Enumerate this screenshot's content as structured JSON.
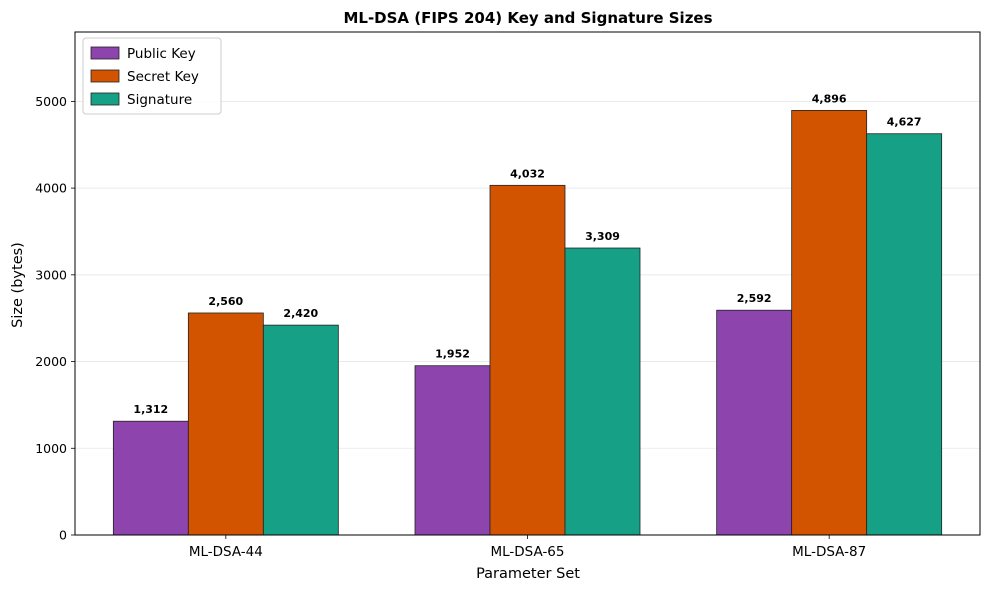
{
  "chart_data": {
    "type": "bar",
    "title": "ML-DSA (FIPS 204) Key and Signature Sizes",
    "xlabel": "Parameter Set",
    "ylabel": "Size (bytes)",
    "categories": [
      "ML-DSA-44",
      "ML-DSA-65",
      "ML-DSA-87"
    ],
    "series": [
      {
        "name": "Public Key",
        "color": "#8e44ad",
        "values": [
          1312,
          1952,
          2592
        ],
        "labels": [
          "1,312",
          "1,952",
          "2,592"
        ]
      },
      {
        "name": "Secret Key",
        "color": "#d35400",
        "values": [
          2560,
          4032,
          4896
        ],
        "labels": [
          "2,560",
          "4,032",
          "4,896"
        ]
      },
      {
        "name": "Signature",
        "color": "#16a085",
        "values": [
          2420,
          3309,
          4627
        ],
        "labels": [
          "2,420",
          "3,309",
          "4,627"
        ]
      }
    ],
    "ylim": [
      0,
      5800
    ],
    "yticks": [
      0,
      1000,
      2000,
      3000,
      4000,
      5000
    ],
    "ytick_labels": [
      "0",
      "1000",
      "2000",
      "3000",
      "4000",
      "5000"
    ],
    "grid": true,
    "legend_position": "top-left"
  }
}
